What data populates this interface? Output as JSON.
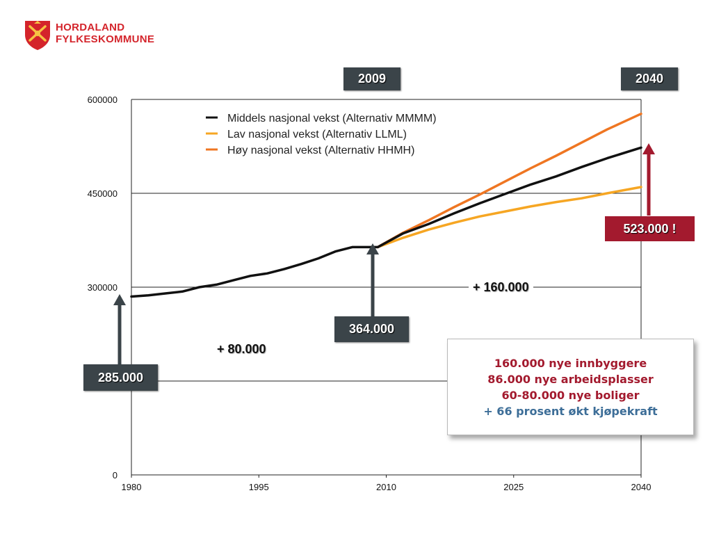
{
  "logo": {
    "line1": "HORDALAND",
    "line2": "FYLKESKOMMUNE",
    "icon": "county-coat-of-arms-icon"
  },
  "colors": {
    "middels": "#111111",
    "lav": "#f6a623",
    "hoy": "#ef7622",
    "dark_box": "#3b4449",
    "red_box": "#a31a2e",
    "info_blue": "#3d6e98"
  },
  "chart_data": {
    "type": "line",
    "x_ticks": [
      "1980",
      "1995",
      "2010",
      "2025",
      "2040"
    ],
    "y_ticks": [
      "0",
      "",
      "300000",
      "450000",
      "600000"
    ],
    "xlim": [
      1980,
      2040
    ],
    "ylim": [
      0,
      600000
    ],
    "grid": "horizontal",
    "legend_position": "top-left",
    "series": [
      {
        "name": "Middels nasjonal vekst (Alternativ MMMM)",
        "color": "#111111",
        "x": [
          1980,
          1982,
          1984,
          1986,
          1988,
          1990,
          1992,
          1994,
          1996,
          1998,
          2000,
          2002,
          2004,
          2006,
          2008,
          2009,
          2012,
          2015,
          2018,
          2021,
          2024,
          2027,
          2030,
          2033,
          2036,
          2040
        ],
        "y": [
          285000,
          287000,
          290000,
          293000,
          300000,
          304000,
          311000,
          318000,
          322000,
          329000,
          337000,
          346000,
          357000,
          364000,
          364000,
          364000,
          386000,
          401000,
          418000,
          434000,
          449000,
          464000,
          477000,
          492000,
          506000,
          523000
        ]
      },
      {
        "name": "Lav nasjonal vekst (Alternativ LLML)",
        "color": "#f6a623",
        "x": [
          2009,
          2012,
          2015,
          2018,
          2021,
          2024,
          2027,
          2030,
          2033,
          2036,
          2040
        ],
        "y": [
          364000,
          379000,
          392000,
          403000,
          413000,
          421000,
          429000,
          436000,
          442000,
          450000,
          460000
        ]
      },
      {
        "name": "Høy nasjonal vekst (Alternativ HHMH)",
        "color": "#ef7622",
        "x": [
          2009,
          2012,
          2015,
          2018,
          2021,
          2024,
          2027,
          2030,
          2033,
          2036,
          2040
        ],
        "y": [
          364000,
          387000,
          407000,
          428000,
          448000,
          469000,
          490000,
          510000,
          531000,
          552000,
          577000
        ]
      }
    ],
    "annotations": {
      "year_2009": "2009",
      "year_2040": "2040",
      "value_1980": "285.000",
      "value_2009": "364.000",
      "value_2040": "523.000 !",
      "growth_1": "+ 80.000",
      "growth_2": "+ 160.000"
    }
  },
  "info_box": {
    "line1": "160.000  nye innbyggere",
    "line2": "86.000 nye arbeidsplasser",
    "line3": "60-80.000 nye boliger",
    "line4": "+ 66 prosent økt kjøpekraft"
  }
}
